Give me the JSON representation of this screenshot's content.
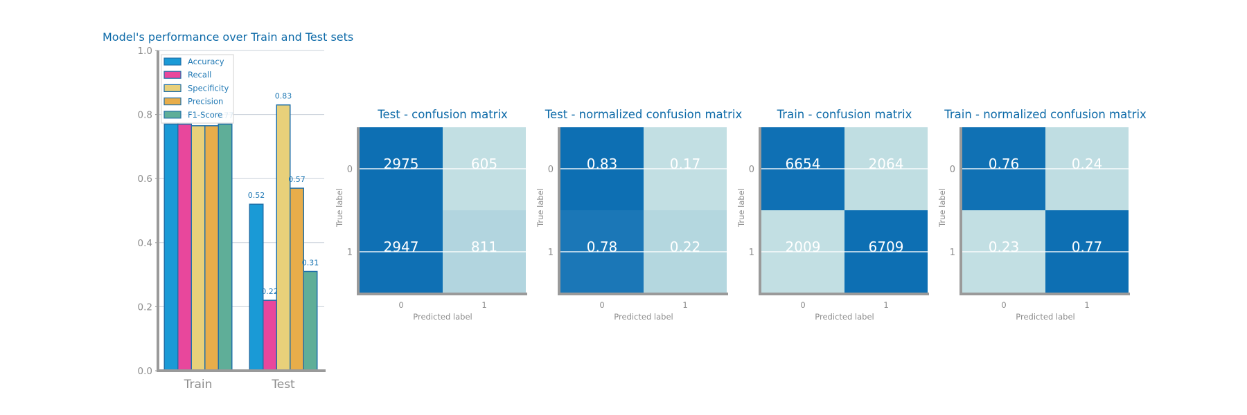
{
  "colors": {
    "spine": "#9a9a9a",
    "grid": "#c8d0da",
    "bar_edge": "#1f6fa8",
    "title": "#0d6aa8",
    "tick": "#8c8c8c",
    "cmap_low": "#c2dfe3",
    "cmap_high": "#0d6fb3"
  },
  "chart_data": [
    {
      "type": "bar",
      "title": "Model's performance over Train and Test sets",
      "categories": [
        "Train",
        "Test"
      ],
      "ylim": [
        0,
        1.0
      ],
      "yticks": [
        "0.0",
        "0.2",
        "0.4",
        "0.6",
        "0.8",
        "1.0"
      ],
      "grid": true,
      "legend_position": "top-left",
      "series": [
        {
          "name": "Accuracy",
          "color": "#1a9ad6",
          "values": [
            0.77,
            0.52
          ],
          "labels": [
            "",
            "0.52"
          ]
        },
        {
          "name": "Recall",
          "color": "#e8479c",
          "values": [
            0.77,
            0.22
          ],
          "labels": [
            "",
            "0.22"
          ]
        },
        {
          "name": "Specificity",
          "color": "#e8d07a",
          "values": [
            0.765,
            0.83
          ],
          "labels": [
            "",
            "0.83"
          ]
        },
        {
          "name": "Precision",
          "color": "#e8ad4a",
          "values": [
            0.765,
            0.57
          ],
          "labels": [
            "",
            "0.57"
          ]
        },
        {
          "name": "F1-Score",
          "color": "#5fae98",
          "values": [
            0.77,
            0.31
          ],
          "labels": [
            "0.77",
            "0.31"
          ]
        }
      ]
    },
    {
      "type": "heatmap",
      "title": "Test - confusion matrix",
      "xlabel": "Predicted label",
      "ylabel": "True label",
      "xticks": [
        "0",
        "1"
      ],
      "yticks": [
        "0",
        "1"
      ],
      "values": [
        [
          2975,
          605
        ],
        [
          2947,
          811
        ]
      ],
      "labels": [
        [
          "2975",
          "605"
        ],
        [
          "2947",
          "811"
        ]
      ]
    },
    {
      "type": "heatmap",
      "title": "Test - normalized confusion matrix",
      "xlabel": "Predicted label",
      "ylabel": "True label",
      "xticks": [
        "0",
        "1"
      ],
      "yticks": [
        "0",
        "1"
      ],
      "values": [
        [
          0.83,
          0.17
        ],
        [
          0.78,
          0.22
        ]
      ],
      "labels": [
        [
          "0.83",
          "0.17"
        ],
        [
          "0.78",
          "0.22"
        ]
      ]
    },
    {
      "type": "heatmap",
      "title": "Train - confusion matrix",
      "xlabel": "Predicted label",
      "ylabel": "True label",
      "xticks": [
        "0",
        "1"
      ],
      "yticks": [
        "0",
        "1"
      ],
      "values": [
        [
          6654,
          2064
        ],
        [
          2009,
          6709
        ]
      ],
      "labels": [
        [
          "6654",
          "2064"
        ],
        [
          "2009",
          "6709"
        ]
      ]
    },
    {
      "type": "heatmap",
      "title": "Train - normalized confusion matrix",
      "xlabel": "Predicted label",
      "ylabel": "True label",
      "xticks": [
        "0",
        "1"
      ],
      "yticks": [
        "0",
        "1"
      ],
      "values": [
        [
          0.76,
          0.24
        ],
        [
          0.23,
          0.77
        ]
      ],
      "labels": [
        [
          "0.76",
          "0.24"
        ],
        [
          "0.23",
          "0.77"
        ]
      ]
    }
  ]
}
